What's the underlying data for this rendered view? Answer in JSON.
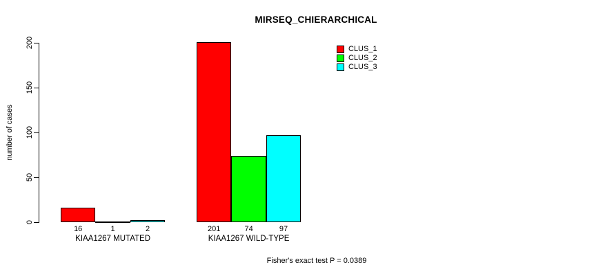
{
  "chart_data": {
    "type": "bar",
    "title": "MIRSEQ_CHIERARCHICAL",
    "ylabel": "number of cases",
    "xlabel": "",
    "caption": "Fisher's exact test P = 0.0389",
    "ylim": [
      0,
      200
    ],
    "yticks": [
      0,
      50,
      100,
      150,
      200
    ],
    "grid": false,
    "legend_position": "top-right",
    "categories": [
      "KIAA1267 MUTATED",
      "KIAA1267 WILD-TYPE"
    ],
    "series": [
      {
        "name": "CLUS_1",
        "color": "#FF0000",
        "values": [
          16,
          201
        ]
      },
      {
        "name": "CLUS_2",
        "color": "#00FF00",
        "values": [
          1,
          74
        ]
      },
      {
        "name": "CLUS_3",
        "color": "#00FFFF",
        "values": [
          2,
          97
        ]
      }
    ]
  },
  "colors": {
    "background": "#FFFFFF",
    "axis": "#000000",
    "text": "#000000",
    "bar_border": "#000000"
  }
}
